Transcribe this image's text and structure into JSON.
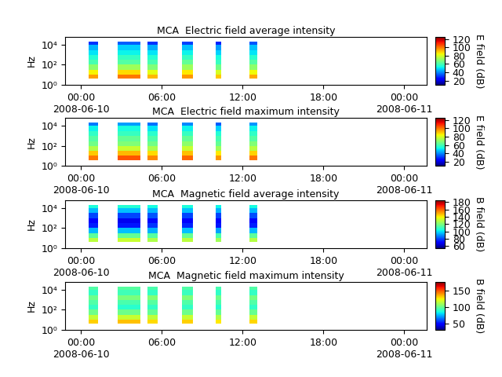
{
  "chart_data": [
    {
      "type": "heatmap",
      "title": "MCA  Electric field average intensity",
      "y_label": "Hz",
      "colorbar_label": "E field (dB)",
      "colorbar_range": [
        10,
        125
      ],
      "colorbar_ticks": [
        20,
        40,
        60,
        80,
        100,
        120
      ],
      "log": "y",
      "grid": false,
      "xlim": [
        "2008-06-09 22:50",
        "2008-06-11 01:40"
      ],
      "xticks": [
        {
          "value": "2008-06-10 00:00",
          "label": "00:00\n2008-06-10"
        },
        {
          "value": "2008-06-10 06:00",
          "label": "06:00"
        },
        {
          "value": "2008-06-10 12:00",
          "label": "12:00"
        },
        {
          "value": "2008-06-10 18:00",
          "label": "18:00"
        },
        {
          "value": "2008-06-11 00:00",
          "label": "00:00\n2008-06-11"
        }
      ],
      "ylim": [
        1,
        60000
      ],
      "yticks": [
        {
          "value": 1,
          "label": "10⁰"
        },
        {
          "value": 100,
          "label": "10²"
        },
        {
          "value": 10000,
          "label": "10⁴"
        }
      ],
      "x": [
        [
          "2008-06-10 00:35",
          "2008-06-10 01:15"
        ],
        [
          "2008-06-10 02:45",
          "2008-06-10 04:25"
        ],
        [
          "2008-06-10 04:55",
          "2008-06-10 05:40"
        ],
        [
          "2008-06-10 07:30",
          "2008-06-10 08:20"
        ],
        [
          "2008-06-10 10:00",
          "2008-06-10 10:25"
        ],
        [
          "2008-06-10 12:30",
          "2008-06-10 13:05"
        ]
      ],
      "y_edges": [
        4,
        10,
        30,
        100,
        300,
        1000,
        3000,
        10000,
        20000
      ],
      "cells": [
        [
          95,
          85,
          70,
          60,
          55,
          50,
          45,
          30
        ],
        [
          100,
          88,
          72,
          62,
          58,
          52,
          48,
          35
        ],
        [
          92,
          82,
          68,
          60,
          55,
          50,
          44,
          30
        ],
        [
          96,
          86,
          72,
          64,
          58,
          52,
          46,
          32
        ],
        [
          90,
          80,
          66,
          58,
          54,
          48,
          42,
          28
        ],
        [
          94,
          84,
          70,
          62,
          56,
          50,
          46,
          34
        ]
      ]
    },
    {
      "type": "heatmap",
      "title": "MCA  Electric field maximum intensity",
      "y_label": "Hz",
      "colorbar_label": "E field (dB)",
      "colorbar_range": [
        10,
        125
      ],
      "colorbar_ticks": [
        20,
        40,
        60,
        80,
        100,
        120
      ],
      "log": "y",
      "grid": false,
      "xlim": [
        "2008-06-09 22:50",
        "2008-06-11 01:40"
      ],
      "xticks": [
        {
          "value": "2008-06-10 00:00",
          "label": "00:00\n2008-06-10"
        },
        {
          "value": "2008-06-10 06:00",
          "label": "06:00"
        },
        {
          "value": "2008-06-10 12:00",
          "label": "12:00"
        },
        {
          "value": "2008-06-10 18:00",
          "label": "18:00"
        },
        {
          "value": "2008-06-11 00:00",
          "label": "00:00\n2008-06-11"
        }
      ],
      "ylim": [
        1,
        60000
      ],
      "yticks": [
        {
          "value": 1,
          "label": "10⁰"
        },
        {
          "value": 100,
          "label": "10²"
        },
        {
          "value": 10000,
          "label": "10⁴"
        }
      ],
      "x": [
        [
          "2008-06-10 00:35",
          "2008-06-10 01:15"
        ],
        [
          "2008-06-10 02:45",
          "2008-06-10 04:25"
        ],
        [
          "2008-06-10 04:55",
          "2008-06-10 05:40"
        ],
        [
          "2008-06-10 07:30",
          "2008-06-10 08:20"
        ],
        [
          "2008-06-10 10:00",
          "2008-06-10 10:25"
        ],
        [
          "2008-06-10 12:30",
          "2008-06-10 13:05"
        ]
      ],
      "y_edges": [
        4,
        10,
        30,
        100,
        300,
        1000,
        3000,
        10000,
        20000
      ],
      "cells": [
        [
          100,
          90,
          75,
          66,
          62,
          57,
          52,
          38
        ],
        [
          104,
          92,
          78,
          68,
          64,
          58,
          54,
          42
        ],
        [
          98,
          88,
          74,
          66,
          61,
          56,
          50,
          37
        ],
        [
          102,
          91,
          78,
          70,
          64,
          58,
          52,
          40
        ],
        [
          96,
          86,
          72,
          64,
          60,
          55,
          48,
          35
        ],
        [
          100,
          89,
          76,
          68,
          62,
          57,
          52,
          41
        ]
      ]
    },
    {
      "type": "heatmap",
      "title": "MCA  Magnetic field average intensity",
      "y_label": "Hz",
      "colorbar_label": "B field (dB)",
      "colorbar_range": [
        55,
        185
      ],
      "colorbar_ticks": [
        60,
        80,
        100,
        120,
        140,
        160,
        180
      ],
      "log": "y",
      "grid": false,
      "xlim": [
        "2008-06-09 22:50",
        "2008-06-11 01:40"
      ],
      "xticks": [
        {
          "value": "2008-06-10 00:00",
          "label": "00:00\n2008-06-10"
        },
        {
          "value": "2008-06-10 06:00",
          "label": "06:00"
        },
        {
          "value": "2008-06-10 12:00",
          "label": "12:00"
        },
        {
          "value": "2008-06-10 18:00",
          "label": "18:00"
        },
        {
          "value": "2008-06-11 00:00",
          "label": "00:00\n2008-06-11"
        }
      ],
      "ylim": [
        1,
        60000
      ],
      "yticks": [
        {
          "value": 1,
          "label": "10⁰"
        },
        {
          "value": 100,
          "label": "10²"
        },
        {
          "value": 10000,
          "label": "10⁴"
        }
      ],
      "x": [
        [
          "2008-06-10 00:35",
          "2008-06-10 01:15"
        ],
        [
          "2008-06-10 02:45",
          "2008-06-10 04:25"
        ],
        [
          "2008-06-10 04:55",
          "2008-06-10 05:40"
        ],
        [
          "2008-06-10 07:30",
          "2008-06-10 08:20"
        ],
        [
          "2008-06-10 10:00",
          "2008-06-10 10:25"
        ],
        [
          "2008-06-10 12:30",
          "2008-06-10 13:05"
        ]
      ],
      "y_edges": [
        4,
        10,
        30,
        100,
        300,
        1000,
        3000,
        10000,
        20000
      ],
      "cells": [
        [
          130,
          115,
          95,
          75,
          70,
          80,
          95,
          105
        ],
        [
          132,
          116,
          96,
          74,
          68,
          80,
          96,
          106
        ],
        [
          128,
          114,
          94,
          78,
          72,
          82,
          95,
          104
        ],
        [
          130,
          116,
          96,
          76,
          70,
          80,
          96,
          105
        ],
        [
          126,
          112,
          92,
          74,
          70,
          80,
          94,
          103
        ],
        [
          129,
          115,
          95,
          75,
          70,
          81,
          95,
          104
        ]
      ]
    },
    {
      "type": "heatmap",
      "title": "MCA  Magnetic field maximum intensity",
      "y_label": "Hz",
      "colorbar_label": "B field (dB)",
      "colorbar_range": [
        30,
        175
      ],
      "colorbar_ticks": [
        50,
        100,
        150
      ],
      "log": "y",
      "grid": false,
      "xlim": [
        "2008-06-09 22:50",
        "2008-06-11 01:40"
      ],
      "xticks": [
        {
          "value": "2008-06-10 00:00",
          "label": "00:00\n2008-06-10"
        },
        {
          "value": "2008-06-10 06:00",
          "label": "06:00"
        },
        {
          "value": "2008-06-10 12:00",
          "label": "12:00"
        },
        {
          "value": "2008-06-10 18:00",
          "label": "18:00"
        },
        {
          "value": "2008-06-11 00:00",
          "label": "00:00\n2008-06-11"
        }
      ],
      "ylim": [
        1,
        60000
      ],
      "yticks": [
        {
          "value": 1,
          "label": "10⁰"
        },
        {
          "value": 100,
          "label": "10²"
        },
        {
          "value": 10000,
          "label": "10⁴"
        }
      ],
      "x": [
        [
          "2008-06-10 00:35",
          "2008-06-10 01:15"
        ],
        [
          "2008-06-10 02:45",
          "2008-06-10 04:25"
        ],
        [
          "2008-06-10 04:55",
          "2008-06-10 05:40"
        ],
        [
          "2008-06-10 07:30",
          "2008-06-10 08:20"
        ],
        [
          "2008-06-10 10:00",
          "2008-06-10 10:25"
        ],
        [
          "2008-06-10 12:30",
          "2008-06-10 13:05"
        ]
      ],
      "y_edges": [
        4,
        10,
        30,
        100,
        300,
        1000,
        3000,
        10000,
        20000
      ],
      "cells": [
        [
          130,
          115,
          100,
          90,
          95,
          100,
          90,
          95
        ],
        [
          132,
          116,
          100,
          88,
          94,
          102,
          92,
          96
        ],
        [
          128,
          114,
          98,
          90,
          96,
          104,
          90,
          94
        ],
        [
          130,
          116,
          100,
          90,
          95,
          103,
          91,
          95
        ],
        [
          126,
          112,
          98,
          88,
          94,
          100,
          89,
          93
        ],
        [
          129,
          115,
          99,
          89,
          95,
          101,
          90,
          95
        ]
      ]
    }
  ]
}
